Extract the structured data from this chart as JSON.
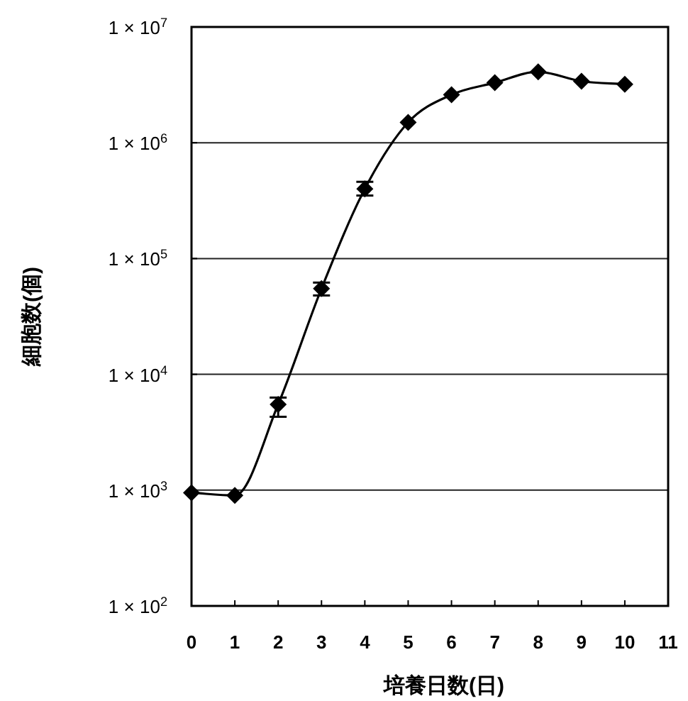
{
  "chart_data": {
    "type": "line",
    "xlabel": "培養日数(日)",
    "ylabel": "細胞数(個)",
    "log": "y",
    "grid": "y",
    "marker": "diamond",
    "x": [
      0,
      1,
      2,
      3,
      4,
      5,
      6,
      7,
      8,
      9,
      10
    ],
    "series": [
      {
        "color": "#000000",
        "values": [
          950,
          900,
          5500,
          55000,
          400000,
          1500000,
          2600000,
          3300000,
          4100000,
          3400000,
          3200000
        ],
        "errors": [
          null,
          null,
          [
            4300,
            6300
          ],
          [
            48000,
            62000
          ],
          [
            350000,
            460000
          ],
          null,
          null,
          null,
          null,
          null,
          null
        ]
      }
    ],
    "xlim": [
      0,
      11
    ],
    "xticks": [
      0,
      1,
      2,
      3,
      4,
      5,
      6,
      7,
      8,
      9,
      10,
      11
    ],
    "ylim": [
      100,
      10000000
    ],
    "yticks": [
      {
        "value": 100,
        "label": "1 × 10$^{2}$"
      },
      {
        "value": 1000,
        "label": "1 × 10$^{3}$"
      },
      {
        "value": 10000,
        "label": "1 × 10$^{4}$"
      },
      {
        "value": 100000,
        "label": "1 × 10$^{5}$"
      },
      {
        "value": 1000000,
        "label": "1 × 10$^{6}$"
      },
      {
        "value": 10000000,
        "label": "1 × 10$^{7}$"
      }
    ]
  }
}
